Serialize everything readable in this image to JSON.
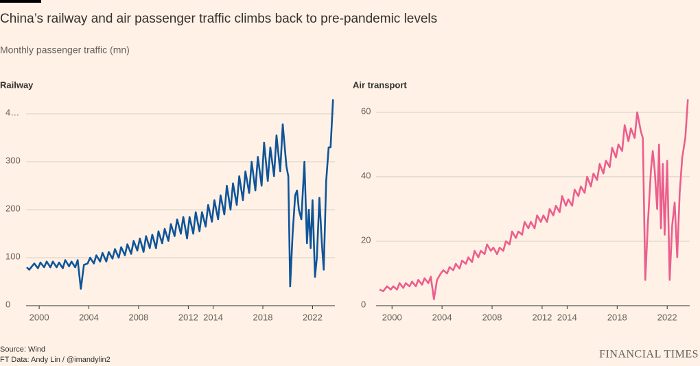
{
  "title": "China’s railway and air passenger traffic climbs back to pre-pandemic levels",
  "subtitle": "Monthly passenger traffic (mn)",
  "source": "Source: Wind",
  "credit": "FT Data: Andy Lin / @imandylin2",
  "brand": "FINANCIAL TIMES",
  "chart_data": [
    {
      "type": "line",
      "title": "Railway",
      "xlim": [
        1999,
        2023.8
      ],
      "xticks": [
        2000,
        2004,
        2008,
        2012,
        2014,
        2018,
        2022
      ],
      "ylim": [
        0,
        430
      ],
      "yticks": [
        0,
        100,
        200,
        300,
        {
          "value": 400,
          "label": "4…"
        }
      ],
      "grid": true,
      "x": [
        1999.0,
        1999.2,
        1999.6,
        1999.9,
        2000.1,
        2000.4,
        2000.6,
        2000.9,
        2001.1,
        2001.4,
        2001.6,
        2001.9,
        2002.1,
        2002.4,
        2002.6,
        2002.9,
        2003.1,
        2003.35,
        2003.6,
        2003.9,
        2004.1,
        2004.4,
        2004.6,
        2004.9,
        2005.1,
        2005.4,
        2005.6,
        2005.9,
        2006.1,
        2006.4,
        2006.6,
        2006.9,
        2007.1,
        2007.4,
        2007.6,
        2007.9,
        2008.1,
        2008.4,
        2008.6,
        2008.9,
        2009.1,
        2009.4,
        2009.6,
        2009.9,
        2010.1,
        2010.4,
        2010.6,
        2010.9,
        2011.1,
        2011.4,
        2011.6,
        2011.9,
        2012.1,
        2012.4,
        2012.6,
        2012.9,
        2013.1,
        2013.4,
        2013.6,
        2013.9,
        2014.1,
        2014.4,
        2014.6,
        2014.9,
        2015.1,
        2015.4,
        2015.6,
        2015.9,
        2016.1,
        2016.4,
        2016.6,
        2016.9,
        2017.1,
        2017.4,
        2017.6,
        2017.9,
        2018.1,
        2018.4,
        2018.6,
        2018.9,
        2019.1,
        2019.4,
        2019.6,
        2019.9,
        2020.05,
        2020.2,
        2020.4,
        2020.6,
        2020.75,
        2020.9,
        2021.1,
        2021.35,
        2021.55,
        2021.7,
        2021.85,
        2022.0,
        2022.2,
        2022.35,
        2022.55,
        2022.75,
        2022.9,
        2023.1,
        2023.3,
        2023.45,
        2023.65
      ],
      "series": [
        {
          "name": "Railway",
          "color": "#0f5499",
          "values": [
            80,
            75,
            88,
            78,
            90,
            80,
            92,
            80,
            92,
            80,
            90,
            78,
            95,
            82,
            92,
            80,
            95,
            35,
            85,
            88,
            100,
            88,
            105,
            92,
            110,
            92,
            112,
            98,
            118,
            100,
            122,
            105,
            128,
            108,
            135,
            115,
            140,
            112,
            145,
            120,
            148,
            120,
            155,
            130,
            160,
            135,
            170,
            145,
            180,
            150,
            185,
            140,
            185,
            150,
            195,
            155,
            195,
            165,
            210,
            175,
            220,
            180,
            230,
            190,
            250,
            200,
            255,
            210,
            270,
            220,
            280,
            235,
            300,
            240,
            310,
            250,
            340,
            260,
            330,
            270,
            355,
            280,
            378,
            290,
            270,
            40,
            150,
            230,
            240,
            200,
            180,
            300,
            130,
            200,
            120,
            220,
            60,
            100,
            225,
            130,
            75,
            260,
            330,
            330,
            430
          ]
        }
      ]
    },
    {
      "type": "line",
      "title": "Air transport",
      "xlim": [
        1999,
        2023.8
      ],
      "xticks": [
        2000,
        2004,
        2008,
        2012,
        2014,
        2018,
        2022
      ],
      "ylim": [
        0,
        64
      ],
      "yticks": [
        0,
        20,
        40,
        60
      ],
      "grid": true,
      "x": [
        1999.0,
        1999.3,
        1999.6,
        1999.9,
        2000.1,
        2000.4,
        2000.6,
        2000.9,
        2001.1,
        2001.4,
        2001.6,
        2001.9,
        2002.1,
        2002.4,
        2002.6,
        2002.9,
        2003.1,
        2003.35,
        2003.6,
        2003.9,
        2004.1,
        2004.4,
        2004.6,
        2004.9,
        2005.1,
        2005.4,
        2005.6,
        2005.9,
        2006.1,
        2006.4,
        2006.6,
        2006.9,
        2007.1,
        2007.4,
        2007.6,
        2007.9,
        2008.1,
        2008.4,
        2008.6,
        2008.9,
        2009.1,
        2009.4,
        2009.6,
        2009.9,
        2010.1,
        2010.4,
        2010.6,
        2010.9,
        2011.1,
        2011.4,
        2011.6,
        2011.9,
        2012.1,
        2012.4,
        2012.6,
        2012.9,
        2013.1,
        2013.4,
        2013.6,
        2013.9,
        2014.1,
        2014.4,
        2014.6,
        2014.9,
        2015.1,
        2015.4,
        2015.6,
        2015.9,
        2016.1,
        2016.4,
        2016.6,
        2016.9,
        2017.1,
        2017.4,
        2017.6,
        2017.9,
        2018.1,
        2018.4,
        2018.6,
        2018.9,
        2019.1,
        2019.4,
        2019.6,
        2019.9,
        2020.05,
        2020.25,
        2020.45,
        2020.7,
        2020.85,
        2021.0,
        2021.2,
        2021.35,
        2021.5,
        2021.65,
        2021.8,
        2022.0,
        2022.2,
        2022.4,
        2022.6,
        2022.8,
        2023.0,
        2023.2,
        2023.45,
        2023.65
      ],
      "series": [
        {
          "name": "Air transport",
          "color": "#eb5e8d",
          "values": [
            5,
            4.5,
            6,
            5,
            6,
            5,
            7,
            5.5,
            7,
            6,
            7.5,
            6,
            8,
            6.5,
            8.5,
            7,
            9,
            2,
            8,
            10,
            11,
            10,
            12,
            11,
            13,
            11.5,
            14,
            13,
            15,
            13.5,
            17,
            15,
            17,
            16,
            19,
            17,
            18,
            16,
            18,
            17,
            20,
            19,
            23,
            21,
            23,
            22,
            26,
            24,
            26,
            24,
            28,
            26,
            28,
            26,
            30,
            28,
            31,
            29,
            34,
            31,
            33,
            31,
            36,
            34,
            37,
            35,
            40,
            37,
            41,
            39,
            44,
            41,
            45,
            43,
            49,
            46,
            50,
            48,
            56,
            51,
            55,
            52,
            60,
            54,
            52,
            8,
            25,
            42,
            48,
            42,
            30,
            50,
            24,
            44,
            22,
            45,
            8,
            25,
            32,
            15,
            35,
            46,
            52,
            64
          ]
        }
      ]
    }
  ]
}
